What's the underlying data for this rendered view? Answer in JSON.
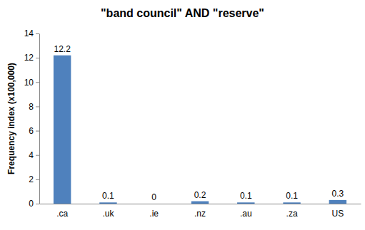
{
  "chart_data": {
    "type": "bar",
    "title": "\"band council\" AND \"reserve\"",
    "y_label": "Frequency index (x100,000)",
    "categories": [
      ".ca",
      ".uk",
      ".ie",
      ".nz",
      ".au",
      ".za",
      "US"
    ],
    "values": [
      12.2,
      0.1,
      0,
      0.2,
      0.1,
      0.1,
      0.3
    ],
    "color": "#4f81bd",
    "ylim": [
      0,
      14
    ],
    "yticks": [
      0,
      2,
      4,
      6,
      8,
      10,
      12,
      14
    ],
    "grid": false,
    "data_labels": true
  }
}
